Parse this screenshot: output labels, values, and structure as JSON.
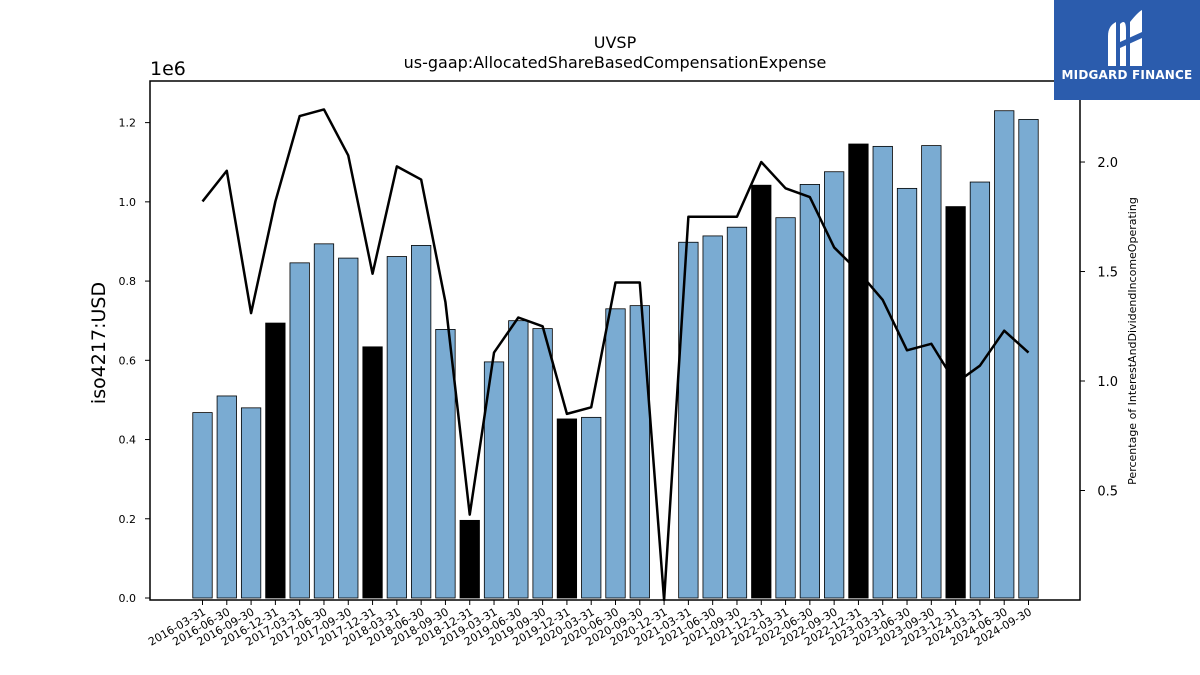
{
  "chart_data": {
    "type": "bar",
    "title": "UVSP",
    "subtitle": "us-gaap:AllocatedShareBasedCompensationExpense",
    "ylabel": "iso4217:USD",
    "y_offset_label": "1e6",
    "y2label": "Percentage of InterestAndDividendIncomeOperating",
    "ylim": [
      0,
      1300000
    ],
    "y2lim": [
      0,
      2.37
    ],
    "yticks": [
      "0.0",
      "0.2",
      "0.4",
      "0.6",
      "0.8",
      "1.0",
      "1.2"
    ],
    "y2ticks": [
      "0.5",
      "1.0",
      "1.5",
      "2.0"
    ],
    "categories": [
      "2016-03-31",
      "2016-06-30",
      "2016-09-30",
      "2016-12-31",
      "2017-03-31",
      "2017-06-30",
      "2017-09-30",
      "2017-12-31",
      "2018-03-31",
      "2018-06-30",
      "2018-09-30",
      "2018-12-31",
      "2019-03-31",
      "2019-06-30",
      "2019-09-30",
      "2019-12-31",
      "2020-03-31",
      "2020-06-30",
      "2020-09-30",
      "2020-12-31",
      "2021-03-31",
      "2021-06-30",
      "2021-09-30",
      "2021-12-31",
      "2022-03-31",
      "2022-06-30",
      "2022-09-30",
      "2022-12-31",
      "2023-03-31",
      "2023-06-30",
      "2023-09-30",
      "2023-12-31",
      "2024-03-31",
      "2024-06-30",
      "2024-09-30"
    ],
    "series": [
      {
        "values": [
          468000,
          510000,
          480000,
          694000,
          846000,
          894000,
          858000,
          634000,
          862000,
          890000,
          678000,
          196000,
          596000,
          700000,
          680000,
          452000,
          456000,
          730000,
          738000,
          0,
          898000,
          914000,
          936000,
          1042000,
          960000,
          1044000,
          1076000,
          1146000,
          1140000,
          1034000,
          1142000,
          988000,
          1050000,
          1230000,
          1208000
        ],
        "highlight": [
          false,
          false,
          false,
          true,
          false,
          false,
          false,
          true,
          false,
          false,
          false,
          true,
          false,
          false,
          false,
          true,
          false,
          false,
          false,
          true,
          false,
          false,
          false,
          true,
          false,
          false,
          false,
          true,
          false,
          false,
          false,
          true,
          false,
          false,
          false
        ]
      },
      {
        "axis": "right",
        "values": [
          1.82,
          1.96,
          1.31,
          1.82,
          2.21,
          2.24,
          2.03,
          1.49,
          1.98,
          1.92,
          1.36,
          0.39,
          1.13,
          1.29,
          1.25,
          0.85,
          0.88,
          1.45,
          1.45,
          0.0,
          1.75,
          1.75,
          1.75,
          2.0,
          1.88,
          1.84,
          1.61,
          1.5,
          1.37,
          1.14,
          1.17,
          0.99,
          1.07,
          1.23,
          1.13
        ]
      }
    ],
    "colors": {
      "bar": "#7aabd2",
      "bar_highlight": "#000000",
      "line": "#000000"
    }
  },
  "logo": {
    "text": "MIDGARD FINANCE",
    "bg": "#2b5cad"
  }
}
